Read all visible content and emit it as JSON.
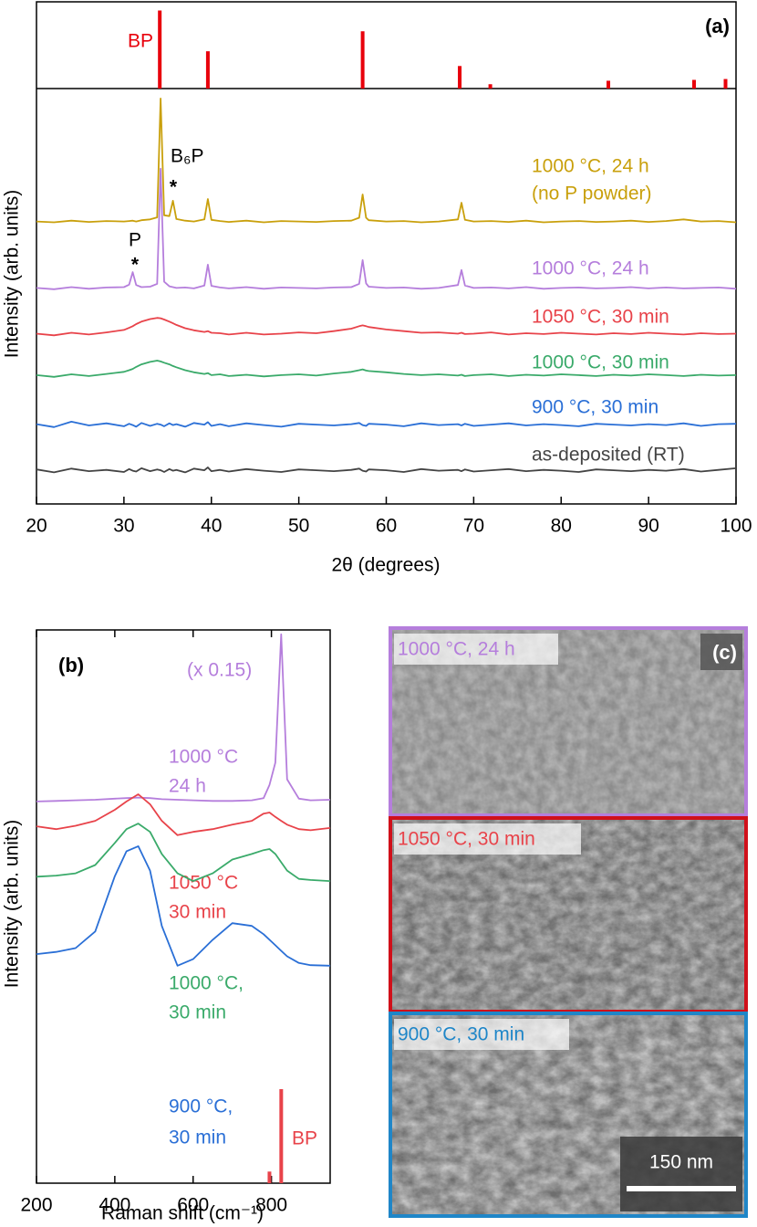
{
  "chart_data": [
    {
      "type": "stick",
      "panel_label": "(a)",
      "series": [
        {
          "name": "BP",
          "color": "#e8000b",
          "x": [
            34.1,
            39.6,
            57.3,
            68.4,
            71.9,
            85.4,
            95.2,
            98.8
          ],
          "values": [
            90,
            43,
            66,
            26,
            5,
            9,
            10,
            11
          ]
        }
      ],
      "xlim": [
        20,
        100
      ],
      "ylim": [
        0,
        100
      ]
    },
    {
      "type": "line",
      "xlabel": "2θ (degrees)",
      "ylabel": "Intensity (arb. units)",
      "annotations": [
        "B₆P",
        "*",
        "P",
        "*"
      ],
      "x": [
        20,
        22,
        24,
        26,
        28,
        30,
        30.6,
        31,
        31.4,
        32,
        33,
        33.8,
        34.2,
        34.6,
        35.2,
        35.6,
        36,
        37,
        38,
        39.2,
        39.6,
        40,
        41,
        42,
        44,
        46,
        48,
        50,
        52,
        54,
        56,
        56.9,
        57.3,
        57.7,
        58,
        60,
        62,
        64,
        66,
        68.2,
        68.6,
        69,
        70,
        72,
        74,
        76,
        78,
        80,
        82,
        84,
        86,
        88,
        90,
        92,
        94,
        96,
        98,
        100
      ],
      "series": [
        {
          "name": [
            "1000 °C, 24 h",
            "(no P powder)"
          ],
          "color": "#c9a00c",
          "values": [
            68.0,
            67.8,
            68.2,
            67.9,
            68.1,
            68.0,
            68.1,
            68.2,
            68.0,
            68.3,
            68.5,
            69.0,
            97.6,
            69.5,
            69.3,
            73.0,
            68.6,
            68.2,
            68.0,
            68.5,
            73.4,
            68.4,
            68.1,
            67.9,
            68.2,
            67.8,
            68.1,
            68.0,
            67.9,
            68.1,
            68.2,
            68.9,
            74.5,
            68.9,
            68.3,
            68.0,
            68.1,
            67.8,
            68.0,
            68.5,
            72.5,
            68.4,
            68.0,
            68.1,
            67.9,
            68.2,
            67.8,
            68.0,
            68.1,
            67.9,
            68.0,
            68.2,
            67.9,
            68.1,
            68.5,
            68.0,
            68.1,
            67.8
          ]
        },
        {
          "name": [
            "1000 °C, 24 h"
          ],
          "color": "#b57edc",
          "values": [
            52.0,
            51.7,
            52.2,
            51.8,
            52.1,
            52.2,
            52.8,
            55.8,
            52.7,
            52.2,
            52.3,
            53.0,
            80.7,
            53.5,
            52.4,
            52.2,
            52.0,
            52.1,
            51.9,
            52.6,
            57.6,
            52.5,
            52.1,
            51.9,
            52.2,
            51.8,
            52.1,
            52.0,
            51.9,
            52.1,
            52.2,
            53.0,
            58.7,
            53.1,
            52.3,
            52.0,
            52.1,
            51.8,
            52.0,
            52.7,
            56.3,
            52.6,
            52.0,
            52.1,
            51.9,
            52.2,
            51.8,
            52.0,
            52.1,
            51.9,
            52.0,
            52.2,
            51.9,
            52.1,
            51.9,
            52.0,
            52.1,
            51.8
          ]
        },
        {
          "name": [
            "1050 °C, 30 min"
          ],
          "color": "#e8434a",
          "values": [
            41.0,
            40.6,
            41.2,
            40.8,
            41.3,
            41.9,
            42.4,
            42.8,
            43.3,
            43.9,
            44.5,
            44.8,
            44.7,
            44.4,
            43.9,
            43.5,
            43.1,
            42.3,
            41.8,
            41.4,
            41.6,
            41.2,
            41.1,
            40.8,
            41.2,
            40.8,
            41.0,
            41.3,
            41.1,
            41.6,
            42.2,
            42.8,
            43.0,
            42.8,
            42.6,
            42.0,
            41.6,
            41.2,
            41.3,
            41.0,
            41.2,
            40.9,
            41.0,
            41.3,
            40.8,
            41.1,
            40.9,
            41.2,
            41.0,
            40.8,
            41.1,
            40.9,
            41.2,
            41.0,
            40.8,
            41.1,
            40.9,
            41.0
          ]
        },
        {
          "name": [
            "1000 °C, 30 min"
          ],
          "color": "#3aaa6a",
          "values": [
            31.0,
            30.6,
            31.2,
            30.8,
            31.3,
            31.8,
            32.2,
            32.5,
            33.0,
            33.6,
            34.2,
            34.5,
            34.3,
            34.0,
            33.6,
            33.2,
            32.9,
            32.2,
            31.7,
            31.3,
            31.5,
            31.0,
            31.2,
            30.8,
            31.1,
            30.7,
            31.0,
            31.2,
            30.9,
            31.4,
            31.8,
            32.2,
            32.4,
            32.1,
            32.0,
            31.7,
            31.3,
            31.0,
            31.2,
            30.9,
            31.1,
            30.8,
            31.0,
            31.2,
            30.8,
            31.1,
            30.9,
            31.2,
            31.0,
            30.8,
            31.1,
            30.9,
            31.2,
            31.0,
            30.8,
            31.1,
            30.9,
            31.0
          ]
        },
        {
          "name": [
            "900 °C, 30 min"
          ],
          "color": "#2a6fd6",
          "values": [
            19.2,
            18.5,
            19.8,
            18.9,
            19.4,
            18.7,
            19.3,
            19.0,
            18.6,
            19.5,
            18.8,
            19.3,
            19.1,
            18.7,
            19.4,
            19.0,
            19.2,
            18.6,
            19.5,
            19.1,
            19.7,
            18.8,
            19.2,
            18.7,
            19.4,
            19.0,
            18.6,
            19.3,
            19.1,
            18.9,
            19.2,
            19.5,
            19.0,
            18.8,
            19.3,
            19.1,
            18.7,
            19.4,
            19.0,
            19.2,
            18.9,
            19.3,
            18.8,
            19.1,
            19.4,
            18.9,
            19.2,
            19.0,
            18.7,
            19.3,
            19.1,
            18.9,
            19.2,
            19.0,
            19.4,
            18.8,
            19.2,
            19.3
          ]
        },
        {
          "name": [
            "as-deposited (RT)"
          ],
          "color": "#444444",
          "values": [
            8.3,
            7.6,
            8.5,
            7.9,
            8.2,
            7.7,
            8.4,
            8.0,
            7.8,
            8.6,
            7.9,
            8.3,
            8.1,
            7.7,
            8.4,
            8.0,
            8.2,
            7.6,
            8.5,
            8.1,
            8.8,
            7.9,
            8.2,
            7.8,
            8.4,
            8.0,
            7.7,
            8.3,
            8.1,
            7.9,
            8.2,
            8.5,
            8.0,
            7.8,
            8.3,
            8.1,
            7.7,
            8.4,
            8.0,
            8.2,
            7.9,
            8.3,
            7.8,
            8.1,
            8.4,
            7.9,
            8.2,
            8.0,
            7.7,
            8.3,
            8.1,
            7.9,
            8.2,
            8.0,
            8.4,
            7.8,
            8.2,
            8.6
          ]
        }
      ],
      "xlim": [
        20,
        100
      ],
      "xticks": [
        20,
        30,
        40,
        50,
        60,
        70,
        80,
        90,
        100
      ],
      "ylim": [
        0,
        100
      ]
    },
    {
      "type": "line",
      "panel_label": "(b)",
      "xlabel": "Raman shift (cm⁻¹)",
      "ylabel": "Intensity (arb. units)",
      "annotations": [
        "(x 0.15)"
      ],
      "x": [
        200,
        250,
        300,
        350,
        400,
        430,
        460,
        490,
        520,
        560,
        600,
        650,
        700,
        750,
        780,
        795,
        810,
        825,
        840,
        870,
        900,
        950
      ],
      "series": [
        {
          "name": [
            "1000 °C",
            "24 h"
          ],
          "color": "#b57edc",
          "values": [
            69.0,
            69.1,
            69.2,
            69.3,
            69.5,
            69.6,
            69.7,
            69.6,
            69.4,
            69.3,
            69.2,
            69.1,
            69.1,
            69.2,
            69.6,
            72.0,
            76.0,
            99.2,
            73.0,
            69.5,
            69.2,
            69.3
          ]
        },
        {
          "name": [
            "1050 °C",
            "30 min"
          ],
          "color": "#e8434a",
          "values": [
            64.5,
            64.0,
            64.6,
            65.5,
            67.5,
            69.0,
            70.3,
            68.5,
            65.5,
            62.9,
            63.5,
            64.0,
            64.8,
            65.5,
            66.8,
            67.0,
            66.2,
            65.5,
            64.8,
            64.0,
            63.8,
            64.2
          ]
        },
        {
          "name": [
            "1000 °C,",
            "30 min"
          ],
          "color": "#3aaa6a",
          "values": [
            55.4,
            55.6,
            56.0,
            57.5,
            61.5,
            64.0,
            65.0,
            63.5,
            59.5,
            56.0,
            54.6,
            56.0,
            58.5,
            59.5,
            60.2,
            60.4,
            59.5,
            58.0,
            56.5,
            55.0,
            54.8,
            54.6
          ]
        },
        {
          "name": [
            "900 °C,",
            "30 min"
          ],
          "color": "#2a6fd6",
          "values": [
            41.4,
            41.8,
            42.5,
            45.5,
            55.5,
            60.0,
            60.9,
            56.5,
            46.5,
            39.3,
            40.5,
            44.0,
            47.0,
            46.5,
            45.0,
            44.0,
            43.0,
            42.0,
            41.0,
            39.8,
            39.4,
            39.3
          ]
        }
      ],
      "reference": {
        "name": "BP",
        "color": "#e8434a",
        "x": [
          795,
          825
        ],
        "values": [
          2.1,
          17
        ]
      },
      "xlim": [
        200,
        950
      ],
      "xticks": [
        200,
        400,
        600,
        800
      ],
      "ylim": [
        0,
        100
      ]
    }
  ],
  "panel_c": {
    "label": "(c)",
    "scale_bar": "150 nm",
    "images": [
      {
        "label": "1000 °C, 24 h",
        "color": "#b57edc"
      },
      {
        "label": "1050 °C, 30 min",
        "color": "#d0101a"
      },
      {
        "label": "900 °C, 30 min",
        "color": "#1f86c8"
      }
    ]
  }
}
